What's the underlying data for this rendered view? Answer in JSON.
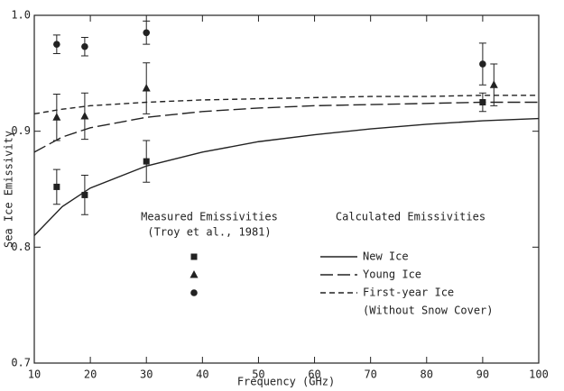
{
  "chart_data": {
    "type": "scatter",
    "xlabel": "Frequency (GHz)",
    "ylabel": "Sea Ice Emissivity",
    "xlim": [
      10,
      100
    ],
    "ylim": [
      0.7,
      1.0
    ],
    "xticks": [
      10,
      20,
      30,
      40,
      50,
      60,
      70,
      80,
      90,
      100
    ],
    "yticks": [
      0.7,
      0.8,
      0.9,
      {
        "value": 1,
        "label": "1.0"
      }
    ],
    "color": "#222222",
    "measured_title": "Measured Emissivities",
    "measured_source": "(Troy et al., 1981)",
    "calculated_title": "Calculated Emissivities",
    "calculated_note": "(Without Snow Cover)",
    "series": [
      {
        "marker": "square",
        "x": [
          14,
          19,
          30,
          90
        ],
        "values": [
          0.852,
          0.845,
          0.874,
          0.925
        ],
        "errors": [
          0.015,
          0.017,
          0.018,
          0.008
        ]
      },
      {
        "marker": "triangle",
        "x": [
          14,
          19,
          30,
          92
        ],
        "values": [
          0.912,
          0.913,
          0.937,
          0.94
        ],
        "errors": [
          0.02,
          0.02,
          0.022,
          0.018
        ]
      },
      {
        "marker": "circle",
        "x": [
          14,
          19,
          30,
          90
        ],
        "values": [
          0.975,
          0.973,
          0.985,
          0.958
        ],
        "errors": [
          0.008,
          0.008,
          0.01,
          0.018
        ]
      }
    ],
    "curves": [
      {
        "name": "New Ice",
        "linestyle": "solid",
        "x": [
          10,
          15,
          20,
          30,
          40,
          50,
          60,
          70,
          80,
          90,
          100
        ],
        "values": [
          0.81,
          0.835,
          0.851,
          0.87,
          0.882,
          0.891,
          0.897,
          0.902,
          0.906,
          0.909,
          0.911
        ]
      },
      {
        "name": "Young Ice",
        "linestyle": "long-dash",
        "x": [
          10,
          15,
          20,
          30,
          40,
          50,
          60,
          70,
          80,
          90,
          100
        ],
        "values": [
          0.882,
          0.895,
          0.903,
          0.912,
          0.917,
          0.92,
          0.922,
          0.923,
          0.924,
          0.925,
          0.925
        ]
      },
      {
        "name": "First-year Ice",
        "linestyle": "dash",
        "x": [
          10,
          15,
          20,
          30,
          40,
          50,
          60,
          70,
          80,
          90,
          100
        ],
        "values": [
          0.915,
          0.919,
          0.922,
          0.925,
          0.927,
          0.928,
          0.929,
          0.93,
          0.93,
          0.931,
          0.931
        ]
      }
    ]
  }
}
